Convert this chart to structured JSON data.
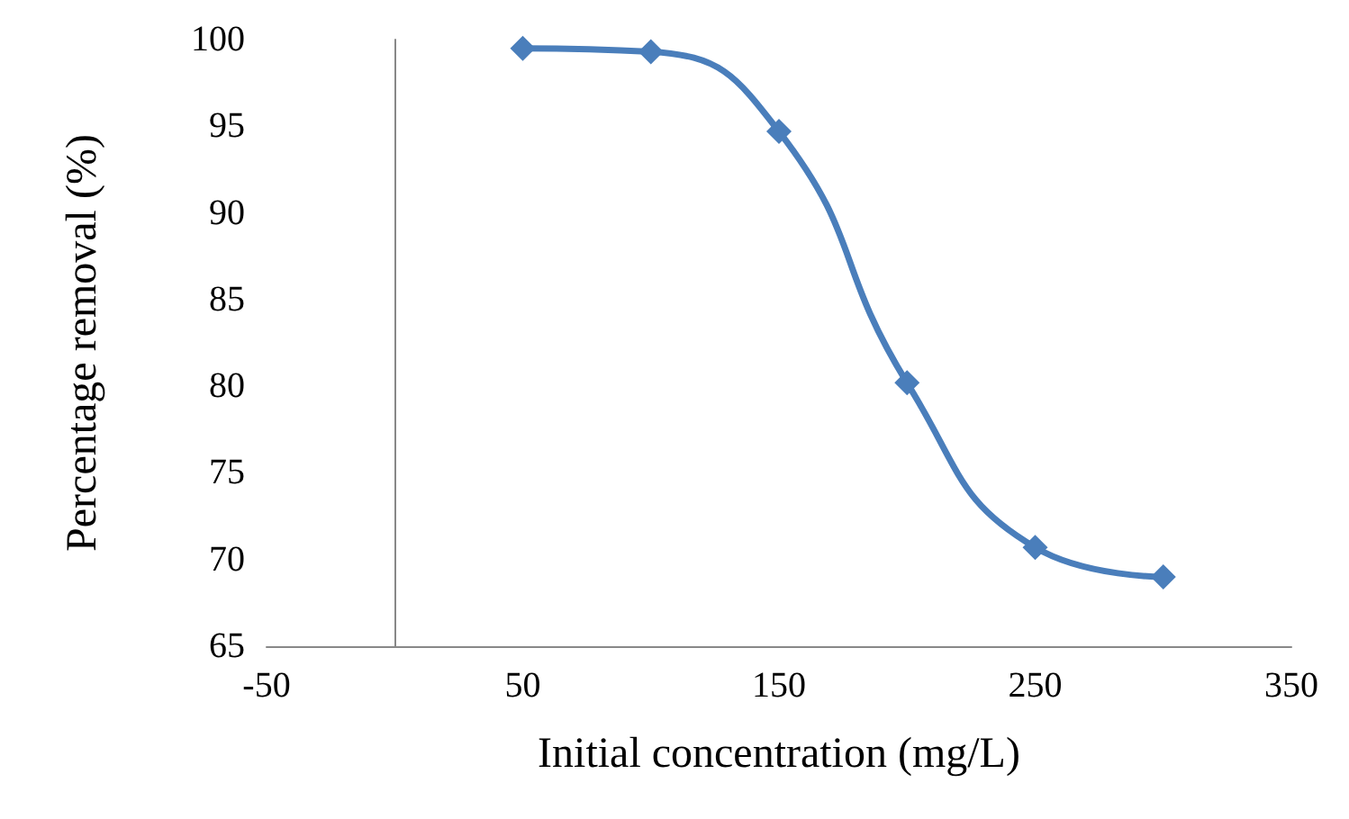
{
  "chart_data": {
    "type": "line",
    "xlabel": "Initial concentration (mg/L)",
    "ylabel": "Percentage removal (%)",
    "x": [
      50,
      100,
      150,
      200,
      250,
      300
    ],
    "series": [
      {
        "color": "#4a7ebb",
        "values": [
          99.5,
          99.3,
          94.7,
          80.2,
          70.7,
          69.0
        ]
      }
    ],
    "xlim": [
      -50,
      350
    ],
    "xticks": [
      -50,
      50,
      150,
      250,
      350
    ],
    "ylim": [
      65,
      100
    ],
    "yticks": [
      65,
      70,
      75,
      80,
      85,
      90,
      95,
      100
    ],
    "grid": false,
    "marker": "diamond",
    "line_style": "solid"
  }
}
